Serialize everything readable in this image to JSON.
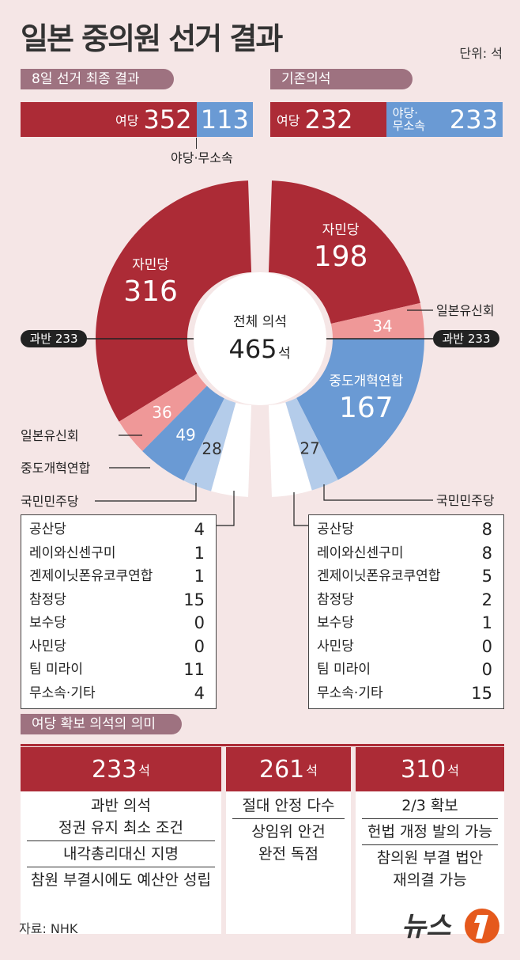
{
  "title": "일본 중의원 선거 결과",
  "unit": "단위: 석",
  "final": {
    "label": "8일 선거 최종 결과",
    "ruling_label": "여당",
    "ruling": 352,
    "opposition": 113,
    "opposition_label": "야당·무소속"
  },
  "previous": {
    "label": "기존의석",
    "ruling_label": "여당",
    "ruling": 232,
    "opposition_label_line1": "야당·",
    "opposition_label_line2": "무소속",
    "opposition": 233
  },
  "center": {
    "label": "전체 의석",
    "total": "465",
    "unit": "석"
  },
  "majority_label": "과반 233",
  "majority_label_right": "과반 233",
  "colors": {
    "ldp": "#ac2b36",
    "ishin": "#ef9898",
    "chudo": "#6a9ad4",
    "dpfp": "#b4ccea",
    "other": "#ffffff",
    "ruling_bar": "#ac2b36",
    "opp_bar": "#6a9ad4"
  },
  "chart_data": [
    {
      "type": "pie",
      "title": "",
      "categories": [
        "자민당",
        "일본유신회",
        "중도개혁연합",
        "국민민주당",
        "기타"
      ],
      "values": [
        316,
        36,
        49,
        28,
        36
      ],
      "value_labels": [
        "316",
        "36",
        "49",
        "28",
        ""
      ],
      "legend_outside": [
        "일본유신회",
        "중도개혁연합",
        "국민민주당"
      ]
    },
    {
      "type": "pie",
      "title": "",
      "categories": [
        "자민당",
        "일본유신회",
        "중도개혁연합",
        "국민민주당",
        "기타"
      ],
      "values": [
        198,
        34,
        167,
        27,
        39
      ],
      "value_labels": [
        "198",
        "34",
        "167",
        "27",
        ""
      ],
      "legend_outside": [
        "일본유신회",
        "국민민주당"
      ]
    }
  ],
  "others_left": [
    {
      "name": "공산당",
      "value": "4"
    },
    {
      "name": "레이와신센구미",
      "value": "1"
    },
    {
      "name": "겐제이닛폰유코쿠연합",
      "value": "1"
    },
    {
      "name": "참정당",
      "value": "15"
    },
    {
      "name": "보수당",
      "value": "0"
    },
    {
      "name": "사민당",
      "value": "0"
    },
    {
      "name": "팀 미라이",
      "value": "11"
    },
    {
      "name": "무소속·기타",
      "value": "4"
    }
  ],
  "others_right": [
    {
      "name": "공산당",
      "value": "8"
    },
    {
      "name": "레이와신센구미",
      "value": "8"
    },
    {
      "name": "겐제이닛폰유코쿠연합",
      "value": "5"
    },
    {
      "name": "참정당",
      "value": "2"
    },
    {
      "name": "보수당",
      "value": "1"
    },
    {
      "name": "사민당",
      "value": "0"
    },
    {
      "name": "팀 미라이",
      "value": "0"
    },
    {
      "name": "무소속·기타",
      "value": "15"
    }
  ],
  "meaning": {
    "label": "여당 확보 의석의 의미",
    "seat_unit": "석",
    "cards": [
      {
        "number": "233",
        "lines": [
          [
            "과반 의석",
            "정권 유지 최소 조건"
          ],
          [
            "내각총리대신 지명"
          ],
          [
            "참원 부결시에도 예산안 성립"
          ]
        ]
      },
      {
        "number": "261",
        "lines": [
          [
            "절대 안정 다수"
          ],
          [
            "상임위 안건",
            "완전 독점"
          ]
        ]
      },
      {
        "number": "310",
        "lines": [
          [
            "2/3 확보"
          ],
          [
            "헌법 개정 발의 가능"
          ],
          [
            "참의원 부결 법안",
            "재의결 가능"
          ]
        ]
      }
    ]
  },
  "source": "자료: NHK",
  "logo": "뉴스1"
}
